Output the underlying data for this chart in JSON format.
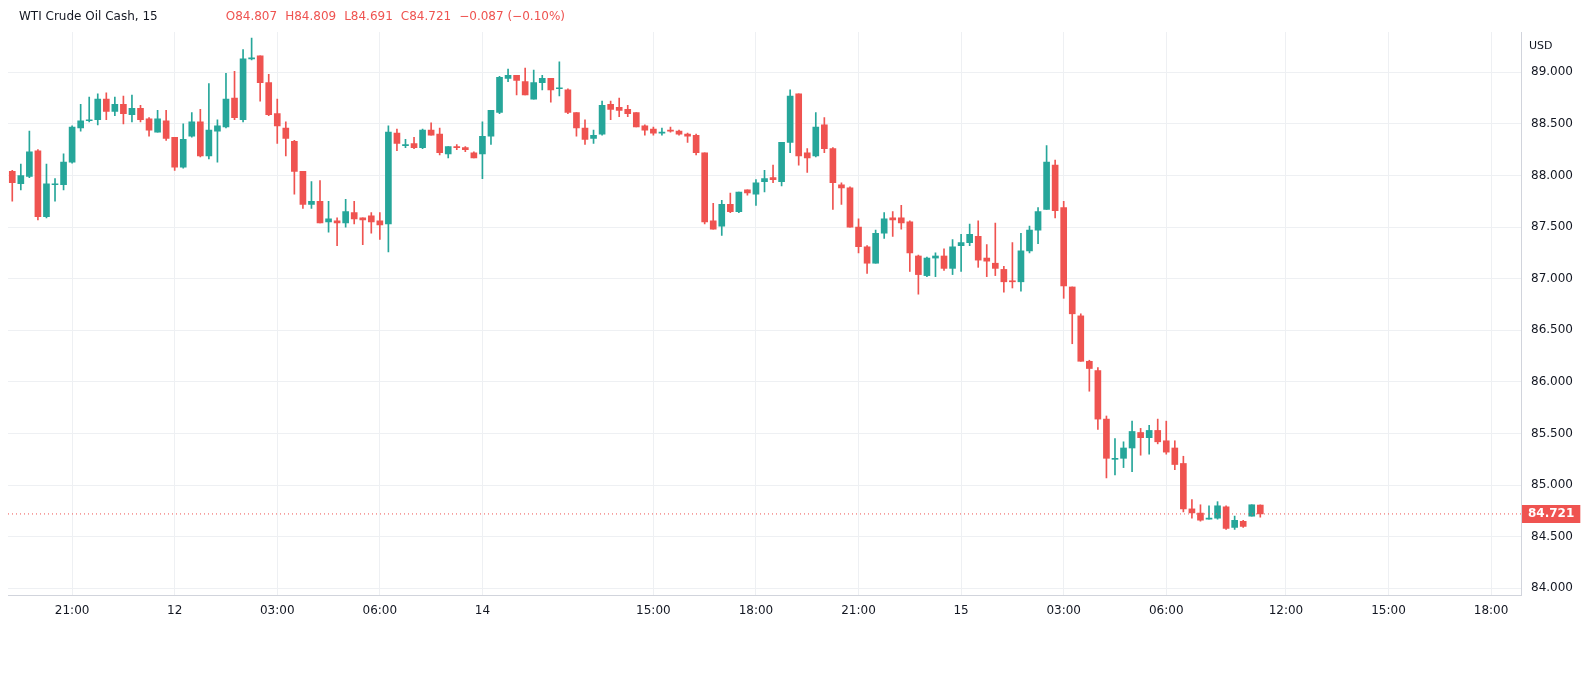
{
  "chart_data": {
    "type": "candlestick",
    "title": "WTI Crude Oil Cash, 15",
    "ylabel": "USD",
    "annotations": [
      "O84.807",
      "H84.809",
      "L84.691",
      "C84.721",
      "−0.087 (−0.10%)"
    ],
    "categories": [
      null,
      null,
      null,
      null,
      null,
      null,
      null,
      "21:00",
      null,
      null,
      null,
      null,
      null,
      null,
      null,
      null,
      null,
      null,
      null,
      "12",
      null,
      null,
      null,
      null,
      null,
      null,
      null,
      null,
      null,
      null,
      null,
      "03:00",
      null,
      null,
      null,
      null,
      null,
      null,
      null,
      null,
      null,
      null,
      null,
      "06:00",
      null,
      null,
      null,
      null,
      null,
      null,
      null,
      null,
      null,
      null,
      null,
      "14",
      null,
      null,
      null,
      null,
      null,
      null,
      null,
      null,
      null,
      null,
      null,
      null,
      null,
      null,
      null,
      null,
      null,
      null,
      null,
      "15:00",
      null,
      null,
      null,
      null,
      null,
      null,
      null,
      null,
      null,
      null,
      null,
      "18:00",
      null,
      null,
      null,
      null,
      null,
      null,
      null,
      null,
      null,
      null,
      null,
      "21:00",
      null,
      null,
      null,
      null,
      null,
      null,
      null,
      null,
      null,
      null,
      null,
      "15",
      null,
      null,
      null,
      null,
      null,
      null,
      null,
      null,
      null,
      null,
      null,
      "03:00",
      null,
      null,
      null,
      null,
      null,
      null,
      null,
      null,
      null,
      null,
      null,
      "06:00",
      null,
      null,
      null,
      null,
      null,
      null,
      null,
      null,
      null,
      null,
      null,
      null,
      null,
      "12:00",
      null,
      null,
      null,
      null,
      null,
      null,
      null,
      null,
      null,
      null,
      null,
      "15:00",
      null,
      null,
      null,
      null,
      null,
      null,
      null,
      null,
      null,
      null,
      null,
      "18:00",
      null,
      null,
      null
    ],
    "ohlc": [
      [
        88.04,
        88.05,
        87.75,
        87.93
      ],
      [
        87.92,
        88.11,
        87.86,
        88.0
      ],
      [
        87.99,
        88.43,
        87.98,
        88.23
      ],
      [
        88.24,
        88.25,
        87.57,
        87.6
      ],
      [
        87.6,
        88.11,
        87.59,
        87.92
      ],
      [
        87.91,
        87.97,
        87.75,
        87.92
      ],
      [
        87.91,
        88.21,
        87.86,
        88.13
      ],
      [
        88.13,
        88.48,
        88.12,
        88.47
      ],
      [
        88.46,
        88.69,
        88.43,
        88.53
      ],
      [
        88.53,
        88.76,
        88.52,
        88.54
      ],
      [
        88.54,
        88.79,
        88.49,
        88.74
      ],
      [
        88.74,
        88.8,
        88.54,
        88.62
      ],
      [
        88.62,
        88.76,
        88.58,
        88.69
      ],
      [
        88.69,
        88.77,
        88.5,
        88.6
      ],
      [
        88.59,
        88.78,
        88.52,
        88.65
      ],
      [
        88.65,
        88.68,
        88.52,
        88.54
      ],
      [
        88.55,
        88.56,
        88.38,
        88.44
      ],
      [
        88.42,
        88.63,
        88.42,
        88.55
      ],
      [
        88.53,
        88.63,
        88.34,
        88.36
      ],
      [
        88.37,
        88.37,
        88.05,
        88.08
      ],
      [
        88.08,
        88.5,
        88.07,
        88.35
      ],
      [
        88.38,
        88.61,
        88.37,
        88.52
      ],
      [
        88.52,
        88.64,
        88.18,
        88.19
      ],
      [
        88.19,
        88.89,
        88.16,
        88.44
      ],
      [
        88.43,
        88.54,
        88.13,
        88.48
      ],
      [
        88.47,
        88.99,
        88.46,
        88.74
      ],
      [
        88.75,
        89.01,
        88.54,
        88.56
      ],
      [
        88.54,
        89.22,
        88.52,
        89.13
      ],
      [
        89.13,
        89.33,
        89.12,
        89.14
      ],
      [
        89.16,
        89.16,
        88.72,
        88.9
      ],
      [
        88.9,
        88.98,
        88.58,
        88.59
      ],
      [
        88.6,
        88.74,
        88.31,
        88.48
      ],
      [
        88.46,
        88.52,
        88.19,
        88.36
      ],
      [
        88.33,
        88.34,
        87.82,
        88.04
      ],
      [
        88.04,
        88.04,
        87.68,
        87.72
      ],
      [
        87.72,
        87.94,
        87.68,
        87.75
      ],
      [
        87.75,
        87.95,
        87.54,
        87.54
      ],
      [
        87.55,
        87.75,
        87.45,
        87.58
      ],
      [
        87.56,
        87.59,
        87.32,
        87.54
      ],
      [
        87.54,
        87.77,
        87.5,
        87.65
      ],
      [
        87.64,
        87.75,
        87.53,
        87.58
      ],
      [
        87.59,
        87.59,
        87.33,
        87.57
      ],
      [
        87.61,
        87.64,
        87.44,
        87.55
      ],
      [
        87.56,
        87.64,
        87.38,
        87.52
      ],
      [
        87.53,
        88.48,
        87.26,
        88.42
      ],
      [
        88.41,
        88.45,
        88.24,
        88.31
      ],
      [
        88.29,
        88.35,
        88.27,
        88.3
      ],
      [
        88.31,
        88.37,
        88.26,
        88.27
      ],
      [
        88.27,
        88.45,
        88.26,
        88.44
      ],
      [
        88.44,
        88.51,
        88.39,
        88.39
      ],
      [
        88.4,
        88.46,
        88.2,
        88.22
      ],
      [
        88.21,
        88.28,
        88.17,
        88.28
      ],
      [
        88.28,
        88.3,
        88.25,
        88.27
      ],
      [
        88.27,
        88.28,
        88.23,
        88.25
      ],
      [
        88.22,
        88.23,
        88.17,
        88.17
      ],
      [
        88.21,
        88.52,
        87.97,
        88.38
      ],
      [
        88.38,
        88.63,
        88.3,
        88.63
      ],
      [
        88.61,
        88.96,
        88.6,
        88.95
      ],
      [
        88.94,
        89.03,
        88.91,
        88.97
      ],
      [
        88.97,
        88.97,
        88.78,
        88.92
      ],
      [
        88.91,
        89.04,
        88.78,
        88.78
      ],
      [
        88.74,
        89.02,
        88.74,
        88.9
      ],
      [
        88.9,
        88.97,
        88.83,
        88.94
      ],
      [
        88.94,
        88.94,
        88.71,
        88.83
      ],
      [
        88.84,
        89.1,
        88.77,
        88.85
      ],
      [
        88.83,
        88.84,
        88.6,
        88.61
      ],
      [
        88.61,
        88.61,
        88.38,
        88.46
      ],
      [
        88.46,
        88.54,
        88.3,
        88.35
      ],
      [
        88.36,
        88.44,
        88.31,
        88.39
      ],
      [
        88.4,
        88.72,
        88.39,
        88.68
      ],
      [
        88.69,
        88.72,
        88.54,
        88.64
      ],
      [
        88.66,
        88.75,
        88.57,
        88.63
      ],
      [
        88.64,
        88.68,
        88.57,
        88.6
      ],
      [
        88.61,
        88.61,
        88.47,
        88.47
      ],
      [
        88.48,
        88.49,
        88.39,
        88.44
      ],
      [
        88.45,
        88.47,
        88.39,
        88.41
      ],
      [
        88.41,
        88.46,
        88.39,
        88.42
      ],
      [
        88.44,
        88.47,
        88.42,
        88.43
      ],
      [
        88.43,
        88.44,
        88.39,
        88.4
      ],
      [
        88.4,
        88.41,
        88.32,
        88.38
      ],
      [
        88.39,
        88.4,
        88.2,
        88.22
      ],
      [
        88.22,
        88.22,
        87.53,
        87.55
      ],
      [
        87.56,
        87.73,
        87.48,
        87.48
      ],
      [
        87.51,
        87.76,
        87.42,
        87.72
      ],
      [
        87.72,
        87.83,
        87.64,
        87.65
      ],
      [
        87.65,
        87.84,
        87.64,
        87.84
      ],
      [
        87.86,
        87.86,
        87.81,
        87.83
      ],
      [
        87.82,
        87.96,
        87.71,
        87.93
      ],
      [
        87.94,
        88.05,
        87.84,
        87.97
      ],
      [
        87.98,
        88.1,
        87.93,
        87.96
      ],
      [
        87.94,
        88.32,
        87.9,
        88.32
      ],
      [
        88.32,
        88.83,
        88.22,
        88.77
      ],
      [
        88.79,
        88.79,
        88.1,
        88.19
      ],
      [
        88.22,
        88.26,
        88.03,
        88.17
      ],
      [
        88.19,
        88.61,
        88.18,
        88.47
      ],
      [
        88.49,
        88.56,
        88.22,
        88.26
      ],
      [
        88.26,
        88.27,
        87.67,
        87.93
      ],
      [
        87.91,
        87.93,
        87.72,
        87.88
      ],
      [
        87.88,
        87.89,
        87.5,
        87.5
      ],
      [
        87.5,
        87.58,
        87.25,
        87.31
      ],
      [
        87.31,
        87.32,
        87.05,
        87.15
      ],
      [
        87.15,
        87.47,
        87.15,
        87.44
      ],
      [
        87.44,
        87.64,
        87.39,
        87.58
      ],
      [
        87.59,
        87.65,
        87.41,
        87.57
      ],
      [
        87.59,
        87.71,
        87.48,
        87.54
      ],
      [
        87.55,
        87.56,
        87.07,
        87.25
      ],
      [
        87.22,
        87.23,
        86.85,
        87.04
      ],
      [
        87.03,
        87.21,
        87.02,
        87.2
      ],
      [
        87.2,
        87.25,
        87.02,
        87.22
      ],
      [
        87.22,
        87.29,
        87.08,
        87.1
      ],
      [
        87.1,
        87.38,
        87.04,
        87.31
      ],
      [
        87.32,
        87.43,
        87.07,
        87.35
      ],
      [
        87.35,
        87.53,
        87.32,
        87.43
      ],
      [
        87.41,
        87.56,
        87.11,
        87.18
      ],
      [
        87.2,
        87.33,
        87.02,
        87.17
      ],
      [
        87.15,
        87.54,
        87.03,
        87.1
      ],
      [
        87.09,
        87.12,
        86.87,
        86.97
      ],
      [
        86.98,
        87.35,
        86.91,
        86.97
      ],
      [
        86.97,
        87.44,
        86.88,
        87.27
      ],
      [
        87.27,
        87.51,
        87.25,
        87.47
      ],
      [
        87.47,
        87.69,
        87.34,
        87.65
      ],
      [
        87.67,
        88.29,
        87.67,
        88.13
      ],
      [
        88.1,
        88.15,
        87.59,
        87.66
      ],
      [
        87.69,
        87.75,
        86.81,
        86.93
      ],
      [
        86.92,
        86.92,
        86.37,
        86.66
      ],
      [
        86.64,
        86.66,
        86.2,
        86.2
      ],
      [
        86.2,
        86.21,
        85.91,
        86.13
      ],
      [
        86.11,
        86.14,
        85.54,
        85.64
      ],
      [
        85.64,
        85.67,
        85.07,
        85.26
      ],
      [
        85.25,
        85.45,
        85.1,
        85.26
      ],
      [
        85.26,
        85.42,
        85.17,
        85.36
      ],
      [
        85.36,
        85.62,
        85.13,
        85.52
      ],
      [
        85.51,
        85.55,
        85.29,
        85.46
      ],
      [
        85.46,
        85.58,
        85.3,
        85.53
      ],
      [
        85.53,
        85.64,
        85.4,
        85.42
      ],
      [
        85.43,
        85.62,
        85.3,
        85.32
      ],
      [
        85.36,
        85.43,
        85.15,
        85.2
      ],
      [
        85.21,
        85.28,
        84.74,
        84.77
      ],
      [
        84.77,
        84.86,
        84.68,
        84.73
      ],
      [
        84.73,
        84.81,
        84.65,
        84.66
      ],
      [
        84.67,
        84.8,
        84.67,
        84.68
      ],
      [
        84.68,
        84.84,
        84.67,
        84.8
      ],
      [
        84.79,
        84.8,
        84.57,
        84.58
      ],
      [
        84.59,
        84.7,
        84.57,
        84.66
      ],
      [
        84.65,
        84.66,
        84.59,
        84.6
      ],
      [
        84.7,
        84.81,
        84.7,
        84.81
      ],
      [
        84.807,
        84.809,
        84.691,
        84.721
      ],
      null,
      null,
      null,
      null,
      null,
      null,
      null,
      null,
      null,
      null,
      null,
      null,
      null,
      null,
      null,
      null,
      null,
      null,
      null,
      null,
      null,
      null,
      null,
      null,
      null,
      null,
      null,
      null,
      null,
      null
    ],
    "colors": [
      "#ef5350",
      "#26a69a",
      "#26a69a",
      "#ef5350",
      "#26a69a",
      "#26a69a",
      "#26a69a",
      "#26a69a",
      "#26a69a",
      "#26a69a",
      "#26a69a",
      "#ef5350",
      "#26a69a",
      "#ef5350",
      "#26a69a",
      "#ef5350",
      "#ef5350",
      "#26a69a",
      "#ef5350",
      "#ef5350",
      "#26a69a",
      "#26a69a",
      "#ef5350",
      "#26a69a",
      "#26a69a",
      "#26a69a",
      "#ef5350",
      "#26a69a",
      "#26a69a",
      "#ef5350",
      "#ef5350",
      "#ef5350",
      "#ef5350",
      "#ef5350",
      "#ef5350",
      "#26a69a",
      "#ef5350",
      "#26a69a",
      "#ef5350",
      "#26a69a",
      "#ef5350",
      "#ef5350",
      "#ef5350",
      "#ef5350",
      "#26a69a",
      "#ef5350",
      "#26a69a",
      "#ef5350",
      "#26a69a",
      "#ef5350",
      "#ef5350",
      "#26a69a",
      "#ef5350",
      "#ef5350",
      "#ef5350",
      "#26a69a",
      "#26a69a",
      "#26a69a",
      "#26a69a",
      "#ef5350",
      "#ef5350",
      "#26a69a",
      "#26a69a",
      "#ef5350",
      "#26a69a",
      "#ef5350",
      "#ef5350",
      "#ef5350",
      "#26a69a",
      "#26a69a",
      "#ef5350",
      "#ef5350",
      "#ef5350",
      "#ef5350",
      "#ef5350",
      "#ef5350",
      "#26a69a",
      "#ef5350",
      "#ef5350",
      "#ef5350",
      "#ef5350",
      "#ef5350",
      "#ef5350",
      "#26a69a",
      "#ef5350",
      "#26a69a",
      "#ef5350",
      "#26a69a",
      "#26a69a",
      "#ef5350",
      "#26a69a",
      "#26a69a",
      "#ef5350",
      "#ef5350",
      "#26a69a",
      "#ef5350",
      "#ef5350",
      "#ef5350",
      "#ef5350",
      "#ef5350",
      "#ef5350",
      "#26a69a",
      "#26a69a",
      "#ef5350",
      "#ef5350",
      "#ef5350",
      "#ef5350",
      "#26a69a",
      "#26a69a",
      "#ef5350",
      "#26a69a",
      "#26a69a",
      "#26a69a",
      "#ef5350",
      "#ef5350",
      "#ef5350",
      "#ef5350",
      "#ef5350",
      "#26a69a",
      "#26a69a",
      "#26a69a",
      "#26a69a",
      "#ef5350",
      "#ef5350",
      "#ef5350",
      "#ef5350",
      "#ef5350",
      "#ef5350",
      "#ef5350",
      "#26a69a",
      "#26a69a",
      "#26a69a",
      "#ef5350",
      "#26a69a",
      "#ef5350",
      "#ef5350",
      "#ef5350",
      "#ef5350",
      "#ef5350",
      "#ef5350",
      "#26a69a",
      "#26a69a",
      "#ef5350",
      "#26a69a",
      "#ef5350",
      "#26a69a",
      "#ef5350",
      null,
      null,
      null,
      null,
      null,
      null,
      null,
      null,
      null,
      null,
      null,
      null,
      null,
      null,
      null,
      null,
      null,
      null,
      null,
      null,
      null,
      null,
      null,
      null,
      null,
      null,
      null,
      null,
      null,
      null
    ],
    "ylim": [
      83.93,
      89.39
    ],
    "yticks": [
      {
        "value": 84,
        "label": "84.000"
      },
      {
        "value": 84.5,
        "label": "84.500"
      },
      {
        "value": 85,
        "label": "85.000"
      },
      {
        "value": 85.5,
        "label": "85.500"
      },
      {
        "value": 86,
        "label": "86.000"
      },
      {
        "value": 86.5,
        "label": "86.500"
      },
      {
        "value": 87,
        "label": "87.000"
      },
      {
        "value": 87.5,
        "label": "87.500"
      },
      {
        "value": 88,
        "label": "88.000"
      },
      {
        "value": 88.5,
        "label": "88.500"
      },
      {
        "value": 89,
        "label": "89.000"
      }
    ],
    "grid": true,
    "ref_lines": [
      {
        "axis": "y",
        "value": 84.721,
        "label": "84.721",
        "color": "#ef5350",
        "line_style": "dotted"
      }
    ]
  }
}
